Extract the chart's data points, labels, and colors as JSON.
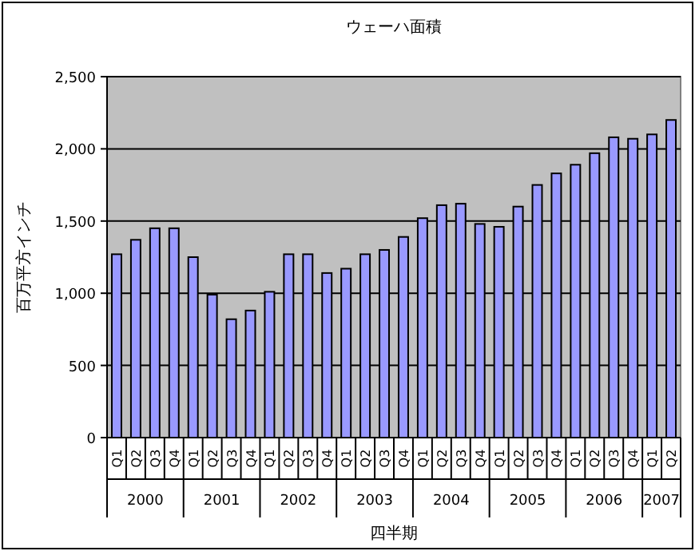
{
  "chart_data": {
    "type": "bar",
    "title": "ウェーハ面積",
    "xlabel": "四半期",
    "ylabel": "百万平方インチ",
    "categories": [
      "Q1",
      "Q2",
      "Q3",
      "Q4",
      "Q1",
      "Q2",
      "Q3",
      "Q4",
      "Q1",
      "Q2",
      "Q3",
      "Q4",
      "Q1",
      "Q2",
      "Q3",
      "Q4",
      "Q1",
      "Q2",
      "Q3",
      "Q4",
      "Q1",
      "Q2",
      "Q3",
      "Q4",
      "Q1",
      "Q2",
      "Q3",
      "Q4",
      "Q1",
      "Q2"
    ],
    "values": [
      1270,
      1370,
      1450,
      1450,
      1250,
      990,
      820,
      880,
      1010,
      1270,
      1270,
      1140,
      1170,
      1270,
      1300,
      1390,
      1520,
      1610,
      1620,
      1480,
      1460,
      1600,
      1750,
      1830,
      1890,
      1970,
      2080,
      2070,
      2100,
      2200
    ],
    "color": "#9999ff",
    "annotations": [
      "2000",
      "2001",
      "2002",
      "2003",
      "2004",
      "2005",
      "2006",
      "2007"
    ],
    "ylim": [
      0,
      2500
    ],
    "yticks": [
      {
        "value": 0,
        "label": "0"
      },
      {
        "value": 500,
        "label": "500"
      },
      {
        "value": 1000,
        "label": "1,000"
      },
      {
        "value": 1500,
        "label": "1,500"
      },
      {
        "value": 2000,
        "label": "2,000"
      },
      {
        "value": 2500,
        "label": "2,500"
      }
    ],
    "grid": "y"
  }
}
